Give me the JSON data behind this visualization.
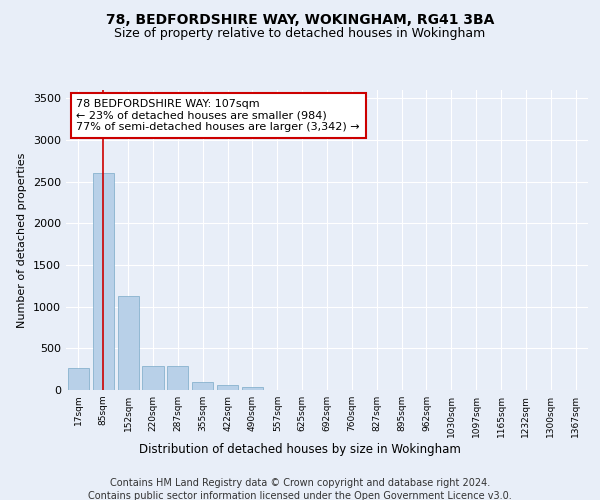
{
  "title": "78, BEDFORDSHIRE WAY, WOKINGHAM, RG41 3BA",
  "subtitle": "Size of property relative to detached houses in Wokingham",
  "xlabel": "Distribution of detached houses by size in Wokingham",
  "ylabel": "Number of detached properties",
  "bar_categories": [
    "17sqm",
    "85sqm",
    "152sqm",
    "220sqm",
    "287sqm",
    "355sqm",
    "422sqm",
    "490sqm",
    "557sqm",
    "625sqm",
    "692sqm",
    "760sqm",
    "827sqm",
    "895sqm",
    "962sqm",
    "1030sqm",
    "1097sqm",
    "1165sqm",
    "1232sqm",
    "1300sqm",
    "1367sqm"
  ],
  "bar_values": [
    270,
    2600,
    1130,
    285,
    285,
    100,
    65,
    40,
    0,
    0,
    0,
    0,
    0,
    0,
    0,
    0,
    0,
    0,
    0,
    0,
    0
  ],
  "bar_color": "#b8d0e8",
  "bar_edge_color": "#7aaac8",
  "vline_x": 1,
  "vline_color": "#cc0000",
  "annotation_text": "78 BEDFORDSHIRE WAY: 107sqm\n← 23% of detached houses are smaller (984)\n77% of semi-detached houses are larger (3,342) →",
  "annotation_box_color": "#ffffff",
  "annotation_border_color": "#cc0000",
  "ylim": [
    0,
    3600
  ],
  "yticks": [
    0,
    500,
    1000,
    1500,
    2000,
    2500,
    3000,
    3500
  ],
  "bg_color": "#e8eef8",
  "grid_color": "#ffffff",
  "footer_line1": "Contains HM Land Registry data © Crown copyright and database right 2024.",
  "footer_line2": "Contains public sector information licensed under the Open Government Licence v3.0.",
  "title_fontsize": 10,
  "subtitle_fontsize": 9,
  "annotation_fontsize": 8,
  "footer_fontsize": 7,
  "ylabel_fontsize": 8,
  "xlabel_fontsize": 8.5
}
